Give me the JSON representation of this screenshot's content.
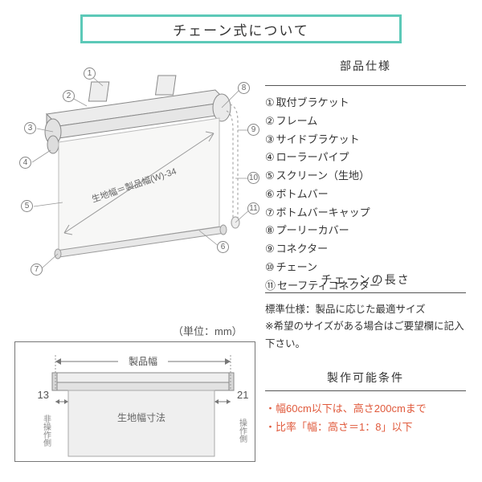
{
  "title": "チェーン式について",
  "parts_heading": "部品仕様",
  "parts": [
    {
      "n": "①",
      "label": "取付ブラケット"
    },
    {
      "n": "②",
      "label": "フレーム"
    },
    {
      "n": "③",
      "label": "サイドブラケット"
    },
    {
      "n": "④",
      "label": "ローラーパイプ"
    },
    {
      "n": "⑤",
      "label": "スクリーン（生地）"
    },
    {
      "n": "⑥",
      "label": "ボトムバー"
    },
    {
      "n": "⑦",
      "label": "ボトムバーキャップ"
    },
    {
      "n": "⑧",
      "label": "プーリーカバー"
    },
    {
      "n": "⑨",
      "label": "コネクター"
    },
    {
      "n": "⑩",
      "label": "チェーン"
    },
    {
      "n": "⑪",
      "label": "セーフティコネクター"
    }
  ],
  "chain_heading": "チェーンの長さ",
  "chain_text": "標準仕様：製品に応じた最適サイズ\n※希望のサイズがある場合はご要望欄に記入下さい。",
  "mfg_heading": "製作可能条件",
  "mfg_lines": [
    "・幅60cm以下は、高さ200cmまで",
    "・比率「幅：高さ＝1：8」以下"
  ],
  "unit_label": "（単位：mm）",
  "diagram_main": {
    "annotation_text": "生地幅＝製品幅(W)-34",
    "callouts": [
      "1",
      "2",
      "3",
      "4",
      "5",
      "6",
      "7",
      "8",
      "9",
      "10",
      "11"
    ],
    "colors": {
      "stroke": "#888",
      "fill": "#f3f3f2",
      "chain": "#aaa",
      "accent": "#5cc9b8"
    }
  },
  "diagram_lower": {
    "labels": {
      "product_width": "製品幅",
      "fabric_width": "生地幅寸法",
      "left_gap": "13",
      "right_gap": "21",
      "left_side": "非操作側",
      "right_side": "操作側"
    },
    "colors": {
      "stroke": "#777",
      "fill_light": "#efefef",
      "fill_mid": "#d8d8d8"
    }
  }
}
